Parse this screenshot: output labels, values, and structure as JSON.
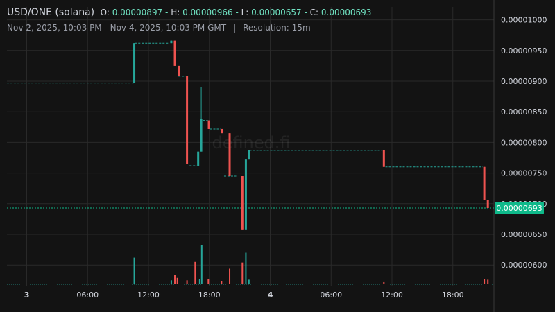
{
  "header": {
    "symbol": "USD/ONE (solana)",
    "open_label": "O:",
    "open": "0.00000897",
    "high_label": "H:",
    "high": "0.00000966",
    "low_label": "L:",
    "low": "0.00000657",
    "close_label": "C:",
    "close": "0.00000693",
    "range": "Nov 2, 2025, 10:03 PM - Nov 4, 2025, 10:03 PM GMT",
    "separator": "|",
    "resolution": "Resolution: 15m"
  },
  "watermark": "defined.fi",
  "colors": {
    "background": "#131313",
    "grid": "#2a2a2a",
    "up": "#26a69a",
    "down": "#ef5350",
    "text": "#d1d4dc",
    "last_price": "#0fb98a"
  },
  "chart_data": {
    "type": "candlestick",
    "x_unit": "hours since Nov 2, 2025 22:03",
    "xlim": [
      0,
      48
    ],
    "ylim": [
      5.7e-06,
      1.02e-05
    ],
    "y_ticks": [
      "0.00000600",
      "0.00000650",
      "0.00000700",
      "0.00000750",
      "0.00000800",
      "0.00000850",
      "0.00000900",
      "0.00000950",
      "0.00001000"
    ],
    "x_ticks": [
      {
        "label": "3",
        "t": 1.95,
        "bold": true
      },
      {
        "label": "06:00",
        "t": 7.95
      },
      {
        "label": "12:00",
        "t": 13.95
      },
      {
        "label": "18:00",
        "t": 19.95
      },
      {
        "label": "4",
        "t": 25.95,
        "bold": true
      },
      {
        "label": "06:00",
        "t": 31.95
      },
      {
        "label": "12:00",
        "t": 37.95
      },
      {
        "label": "18:00",
        "t": 43.95
      }
    ],
    "last_price_label": "0.00000693",
    "last_price": 6.93e-06,
    "steps": [
      {
        "t1": 0.0,
        "t2": 12.5,
        "p": 8.97e-06
      },
      {
        "t1": 12.6,
        "t2": 15.9,
        "p": 9.62e-06
      },
      {
        "t1": 16.9,
        "t2": 17.6,
        "p": 9.08e-06
      },
      {
        "t1": 18.0,
        "t2": 18.7,
        "p": 7.62e-06
      },
      {
        "t1": 19.3,
        "t2": 19.8,
        "p": 8.36e-06
      },
      {
        "t1": 20.0,
        "t2": 21.1,
        "p": 8.22e-06
      },
      {
        "t1": 21.4,
        "t2": 22.6,
        "p": 7.45e-06
      },
      {
        "t1": 23.9,
        "t2": 37.0,
        "p": 7.87e-06
      },
      {
        "t1": 37.3,
        "t2": 46.9,
        "p": 7.6e-06
      }
    ],
    "candles": [
      {
        "t": 12.55,
        "o": 8.97e-06,
        "h": 9.62e-06,
        "l": 8.97e-06,
        "c": 9.62e-06
      },
      {
        "t": 16.2,
        "o": 9.62e-06,
        "h": 9.66e-06,
        "l": 9.62e-06,
        "c": 9.66e-06
      },
      {
        "t": 16.55,
        "o": 9.66e-06,
        "h": 9.66e-06,
        "l": 9.25e-06,
        "c": 9.25e-06
      },
      {
        "t": 16.95,
        "o": 9.25e-06,
        "h": 9.25e-06,
        "l": 9.08e-06,
        "c": 9.08e-06
      },
      {
        "t": 17.75,
        "o": 9.08e-06,
        "h": 9.08e-06,
        "l": 7.65e-06,
        "c": 7.65e-06
      },
      {
        "t": 18.85,
        "o": 7.62e-06,
        "h": 7.85e-06,
        "l": 7.62e-06,
        "c": 7.85e-06
      },
      {
        "t": 19.15,
        "o": 7.85e-06,
        "h": 8.9e-06,
        "l": 7.85e-06,
        "c": 8.38e-06
      },
      {
        "t": 19.9,
        "o": 8.36e-06,
        "h": 8.36e-06,
        "l": 8.22e-06,
        "c": 8.22e-06
      },
      {
        "t": 21.2,
        "o": 8.22e-06,
        "h": 8.22e-06,
        "l": 8.15e-06,
        "c": 8.15e-06
      },
      {
        "t": 21.95,
        "o": 8.15e-06,
        "h": 8.15e-06,
        "l": 7.45e-06,
        "c": 7.45e-06
      },
      {
        "t": 23.2,
        "o": 7.45e-06,
        "h": 7.45e-06,
        "l": 6.57e-06,
        "c": 6.57e-06
      },
      {
        "t": 23.55,
        "o": 6.57e-06,
        "h": 7.72e-06,
        "l": 6.57e-06,
        "c": 7.72e-06
      },
      {
        "t": 23.85,
        "o": 7.72e-06,
        "h": 7.87e-06,
        "l": 7.72e-06,
        "c": 7.87e-06
      },
      {
        "t": 37.15,
        "o": 7.87e-06,
        "h": 7.87e-06,
        "l": 7.6e-06,
        "c": 7.6e-06
      },
      {
        "t": 47.05,
        "o": 7.6e-06,
        "h": 7.6e-06,
        "l": 7.06e-06,
        "c": 7.06e-06
      },
      {
        "t": 47.4,
        "o": 7.06e-06,
        "h": 7.06e-06,
        "l": 6.93e-06,
        "c": 6.93e-06
      }
    ],
    "volume_baseline": 5.687e-06,
    "volume": [
      {
        "t": 12.55,
        "v": 6.12e-06,
        "dir": "up"
      },
      {
        "t": 16.2,
        "v": 5.75e-06,
        "dir": "up"
      },
      {
        "t": 16.55,
        "v": 5.84e-06,
        "dir": "down"
      },
      {
        "t": 16.8,
        "v": 5.79e-06,
        "dir": "down"
      },
      {
        "t": 17.75,
        "v": 5.75e-06,
        "dir": "down"
      },
      {
        "t": 18.55,
        "v": 6.05e-06,
        "dir": "down"
      },
      {
        "t": 19.0,
        "v": 5.77e-06,
        "dir": "up"
      },
      {
        "t": 19.2,
        "v": 6.33e-06,
        "dir": "up"
      },
      {
        "t": 19.85,
        "v": 5.77e-06,
        "dir": "down"
      },
      {
        "t": 21.15,
        "v": 5.74e-06,
        "dir": "down"
      },
      {
        "t": 21.95,
        "v": 5.94e-06,
        "dir": "down"
      },
      {
        "t": 23.2,
        "v": 6.04e-06,
        "dir": "down"
      },
      {
        "t": 23.55,
        "v": 6.2e-06,
        "dir": "up"
      },
      {
        "t": 23.85,
        "v": 5.76e-06,
        "dir": "up"
      },
      {
        "t": 37.15,
        "v": 5.72e-06,
        "dir": "down"
      },
      {
        "t": 47.05,
        "v": 5.77e-06,
        "dir": "down"
      },
      {
        "t": 47.4,
        "v": 5.76e-06,
        "dir": "down"
      }
    ]
  }
}
